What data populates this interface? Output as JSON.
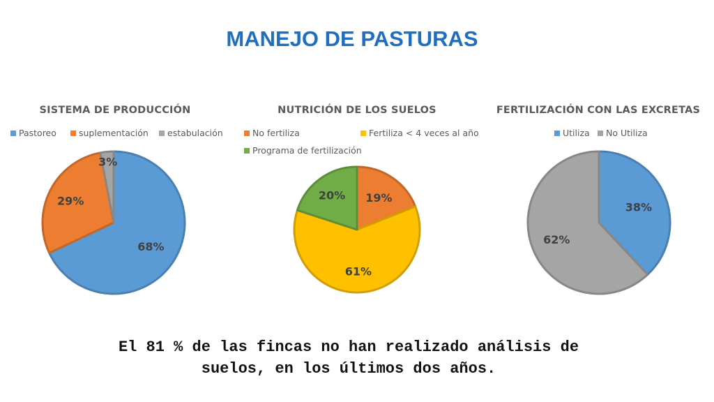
{
  "slide_title": "MANEJO DE PASTURAS",
  "footer_text": "El 81 % de las fincas no han realizado análisis de\nsuelos, en los últimos dos años.",
  "chart_data": [
    {
      "type": "pie",
      "title": "SISTEMA DE PRODUCCIÓN",
      "categories": [
        "Pastoreo",
        "suplementación",
        "estabulación"
      ],
      "values": [
        68,
        29,
        3
      ],
      "labels": [
        "68%",
        "29%",
        "3%"
      ],
      "colors": [
        "#5b9bd5",
        "#ed7d31",
        "#a5a5a5"
      ],
      "legend": "top"
    },
    {
      "type": "pie",
      "title": "NUTRICIÓN DE LOS SUELOS",
      "categories": [
        "No fertiliza",
        "Fertiliza < 4 veces al año",
        "Programa de fertilización"
      ],
      "values": [
        19,
        61,
        20
      ],
      "labels": [
        "19%",
        "61%",
        "20%"
      ],
      "colors": [
        "#ed7d31",
        "#ffc000",
        "#70ad47"
      ],
      "legend": "top"
    },
    {
      "type": "pie",
      "title": "FERTILIZACIÓN CON LAS EXCRETAS",
      "categories": [
        "Utiliza",
        "No Utiliza"
      ],
      "values": [
        38,
        62
      ],
      "labels": [
        "38%",
        "62%"
      ],
      "colors": [
        "#5b9bd5",
        "#a5a5a5"
      ],
      "legend": "top"
    }
  ]
}
